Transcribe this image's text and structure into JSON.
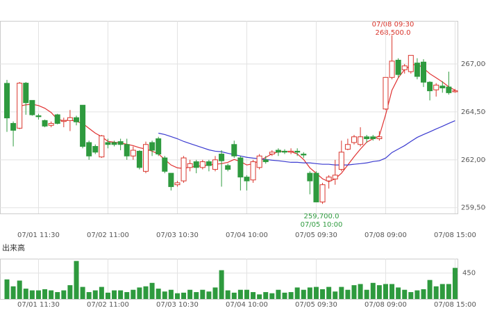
{
  "chart_data": [
    {
      "type": "candlestick",
      "categories": [
        null,
        null,
        null,
        null,
        null,
        "07/01 11:30",
        null,
        null,
        null,
        null,
        null,
        null,
        null,
        null,
        null,
        null,
        "07/02 11:00",
        null,
        null,
        null,
        null,
        null,
        null,
        null,
        null,
        null,
        null,
        "07/03 10:30",
        null,
        null,
        null,
        null,
        null,
        null,
        null,
        null,
        null,
        null,
        "07/04 10:00",
        null,
        null,
        null,
        null,
        null,
        null,
        null,
        null,
        null,
        null,
        "07/05 09:30",
        null,
        null,
        null,
        null,
        null,
        null,
        null,
        null,
        null,
        null,
        "07/08 09:00",
        null,
        null,
        null,
        null,
        null,
        null,
        null,
        null,
        null,
        null,
        "07/08 15:00"
      ],
      "open": [
        265990,
        263900,
        263650,
        266000,
        265100,
        264300,
        264050,
        263800,
        264350,
        264000,
        264050,
        264200,
        264850,
        262900,
        262700,
        262150,
        262900,
        262900,
        262950,
        262800,
        262200,
        262450,
        261400,
        262900,
        263100,
        262100,
        261300,
        260700,
        260900,
        261600,
        261900,
        261600,
        261900,
        261500,
        262300,
        261700,
        262800,
        262100,
        261100,
        260950,
        261600,
        262000,
        262300,
        262500,
        262450,
        262400,
        262450,
        262300,
        261300,
        261300,
        259800,
        260900,
        261000,
        261500,
        262550,
        262900,
        262800,
        263200,
        263200,
        263100,
        264650,
        266300,
        267200,
        266700,
        266600,
        267050,
        267100,
        266050,
        265650,
        265850,
        265800,
        265550
      ],
      "high": [
        266170,
        264000,
        266060,
        266060,
        265100,
        264400,
        264100,
        264000,
        264400,
        264200,
        264600,
        264300,
        264850,
        263000,
        262800,
        263300,
        263100,
        263000,
        263100,
        263100,
        262700,
        262500,
        262950,
        263000,
        263200,
        262200,
        261300,
        260900,
        262200,
        262000,
        262000,
        262000,
        262000,
        262200,
        262500,
        261800,
        263000,
        262200,
        261200,
        262000,
        262300,
        262200,
        262500,
        262600,
        262550,
        262600,
        262600,
        262400,
        261400,
        261400,
        260800,
        261200,
        262000,
        263000,
        263100,
        263300,
        263700,
        263300,
        263300,
        263500,
        266300,
        268500,
        267300,
        267000,
        267450,
        267300,
        267250,
        266100,
        266000,
        266100,
        266600,
        265700
      ],
      "low": [
        263460,
        262700,
        263600,
        264350,
        264300,
        264100,
        263700,
        263700,
        263850,
        263700,
        263500,
        263800,
        262600,
        262000,
        262300,
        262100,
        262600,
        262700,
        262500,
        262000,
        262000,
        261500,
        261300,
        262200,
        262200,
        261300,
        260400,
        260600,
        260800,
        261400,
        261300,
        261500,
        261400,
        261400,
        260600,
        261400,
        262100,
        260400,
        260400,
        260800,
        261500,
        261800,
        262200,
        262200,
        262300,
        262300,
        262200,
        262100,
        260200,
        259800,
        259700,
        260500,
        260700,
        261400,
        262500,
        262800,
        262700,
        262900,
        263000,
        263000,
        264600,
        266200,
        266300,
        266500,
        266500,
        266200,
        265800,
        265100,
        265300,
        265500,
        265400,
        265500
      ],
      "close": [
        264185,
        263540,
        266000,
        264980,
        264350,
        264250,
        263760,
        263900,
        263900,
        264050,
        264200,
        263980,
        262700,
        262200,
        262400,
        263250,
        262800,
        262800,
        262800,
        262200,
        262500,
        261600,
        262800,
        262500,
        262300,
        261400,
        260600,
        260800,
        262100,
        261800,
        261600,
        261900,
        261700,
        262000,
        261950,
        261500,
        262200,
        261100,
        260900,
        261900,
        262200,
        261900,
        262400,
        262400,
        262400,
        262450,
        262400,
        262250,
        260900,
        259800,
        260700,
        261100,
        261200,
        262400,
        262800,
        263200,
        263200,
        263100,
        263100,
        263200,
        266300,
        267150,
        266450,
        266900,
        267450,
        266350,
        266050,
        265600,
        265900,
        265750,
        265500,
        265600
      ],
      "up_color": "#d9342b",
      "down_color": "#2e9a3e",
      "series": [
        {
          "color": "#e03030",
          "values": [
            null,
            null,
            264800,
            264870,
            264900,
            264830,
            264690,
            264470,
            264110,
            264040,
            264080,
            264000,
            263900,
            263640,
            263390,
            263210,
            262960,
            262920,
            262880,
            262810,
            262740,
            262630,
            262560,
            262450,
            262310,
            262020,
            261730,
            261580,
            261550,
            261620,
            261660,
            261690,
            261730,
            261770,
            261800,
            261870,
            262020,
            261910,
            261730,
            261800,
            261950,
            262130,
            262310,
            262420,
            262450,
            262420,
            262310,
            262020,
            261580,
            261300,
            261010,
            260860,
            261010,
            261300,
            261730,
            262160,
            262560,
            262920,
            263100,
            263250,
            264360,
            265630,
            266280,
            266710,
            266930,
            267000,
            266780,
            266490,
            266280,
            266060,
            265810,
            265630
          ]
        },
        {
          "color": "#3a3ad0",
          "values": [
            null,
            null,
            null,
            null,
            null,
            null,
            null,
            null,
            null,
            null,
            null,
            null,
            null,
            null,
            null,
            null,
            null,
            null,
            null,
            null,
            null,
            null,
            null,
            null,
            263390,
            263320,
            263210,
            263100,
            262960,
            262850,
            262740,
            262630,
            262520,
            262450,
            262420,
            262340,
            262270,
            262200,
            262130,
            262090,
            262060,
            262020,
            261980,
            261950,
            261910,
            261870,
            261870,
            261840,
            261840,
            261800,
            261770,
            261770,
            261730,
            261730,
            261730,
            261770,
            261800,
            261840,
            261910,
            261950,
            262090,
            262380,
            262560,
            262740,
            262960,
            263170,
            263320,
            263460,
            263610,
            263750,
            263900,
            264040
          ]
        }
      ],
      "ylim": [
        259200,
        269250
      ],
      "yticks": [
        {
          "value": 259500,
          "label": "259,500"
        },
        {
          "value": 262000,
          "label": "262,000"
        },
        {
          "value": 264500,
          "label": "264,500"
        },
        {
          "value": 267000,
          "label": "267,000"
        }
      ],
      "annotations": {
        "high_time": "07/08 09:30",
        "high_label": "268,500.0",
        "low_label": "259,700.0",
        "low_time": "07/05 10:00"
      },
      "grid": true
    },
    {
      "type": "bar",
      "title": "出来高",
      "categories": [
        null,
        null,
        null,
        null,
        null,
        "07/01 11:30",
        null,
        null,
        null,
        null,
        null,
        null,
        null,
        null,
        null,
        null,
        "07/02 11:00",
        null,
        null,
        null,
        null,
        null,
        null,
        null,
        null,
        null,
        null,
        "07/03 10:30",
        null,
        null,
        null,
        null,
        null,
        null,
        null,
        null,
        null,
        null,
        "07/04 10:00",
        null,
        null,
        null,
        null,
        null,
        null,
        null,
        null,
        null,
        null,
        "07/05 09:30",
        null,
        null,
        null,
        null,
        null,
        null,
        null,
        null,
        null,
        null,
        "07/08 09:00",
        null,
        null,
        null,
        null,
        null,
        null,
        null,
        null,
        null,
        null,
        "07/08 15:00"
      ],
      "values": [
        340,
        220,
        320,
        180,
        150,
        150,
        170,
        150,
        120,
        150,
        240,
        660,
        210,
        120,
        150,
        210,
        110,
        150,
        150,
        120,
        160,
        200,
        220,
        280,
        180,
        130,
        160,
        100,
        110,
        160,
        120,
        160,
        130,
        200,
        500,
        150,
        110,
        160,
        160,
        120,
        80,
        120,
        100,
        160,
        110,
        120,
        200,
        160,
        200,
        210,
        170,
        210,
        130,
        210,
        160,
        240,
        260,
        160,
        280,
        240,
        260,
        260,
        200,
        160,
        120,
        150,
        170,
        330,
        220,
        260,
        260,
        540
      ],
      "color": "#2e9a3e",
      "ylim": [
        0,
        700
      ],
      "yticks": [
        450
      ],
      "grid": true
    }
  ]
}
